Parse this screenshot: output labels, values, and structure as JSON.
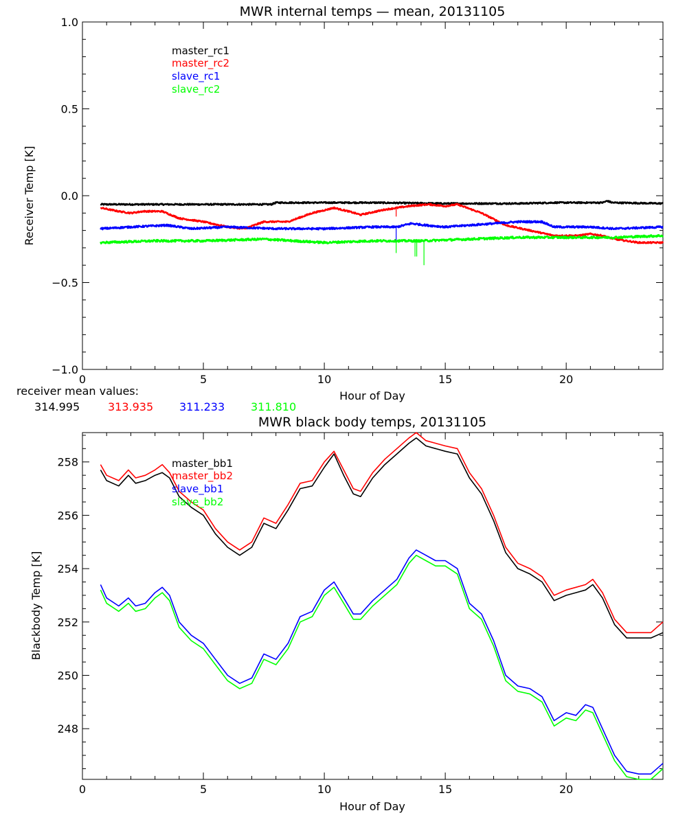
{
  "chart_data": [
    {
      "type": "line",
      "title": "MWR internal temps — mean, 20131105",
      "xlabel": "Hour of Day",
      "ylabel": "Receiver Temp [K]",
      "xlim": [
        0,
        24
      ],
      "ylim": [
        -1.0,
        1.0
      ],
      "xticks": [
        0,
        5,
        10,
        15,
        20
      ],
      "yticks": [
        -1.0,
        -0.5,
        0.0,
        0.5,
        1.0
      ],
      "ytick_labels": [
        "−1.0",
        "−0.5",
        "0.0",
        "0.5",
        "1.0"
      ],
      "legend_position": "top-left",
      "series": [
        {
          "name": "master_rc1",
          "color": "#000000",
          "noise": 0.004,
          "x": [
            0.75,
            3,
            6,
            7.8,
            8,
            12,
            15,
            18,
            19.5,
            21.5,
            21.7,
            21.9,
            24
          ],
          "y": [
            -0.05,
            -0.05,
            -0.05,
            -0.05,
            -0.04,
            -0.04,
            -0.045,
            -0.045,
            -0.04,
            -0.04,
            -0.03,
            -0.04,
            -0.045
          ]
        },
        {
          "name": "master_rc2",
          "color": "#ff0000",
          "noise": 0.004,
          "x": [
            0.75,
            1.5,
            2,
            2.5,
            3.3,
            4,
            5,
            6,
            6.7,
            7.5,
            8.5,
            9.5,
            10.4,
            11,
            11.5,
            12.5,
            13.5,
            14.3,
            15,
            15.5,
            16.5,
            17.5,
            18.5,
            19.5,
            20.5,
            21,
            21.5,
            22,
            23,
            24
          ],
          "y": [
            -0.07,
            -0.09,
            -0.1,
            -0.09,
            -0.09,
            -0.13,
            -0.15,
            -0.18,
            -0.19,
            -0.15,
            -0.15,
            -0.1,
            -0.07,
            -0.09,
            -0.11,
            -0.08,
            -0.06,
            -0.05,
            -0.06,
            -0.05,
            -0.1,
            -0.17,
            -0.2,
            -0.23,
            -0.23,
            -0.22,
            -0.23,
            -0.25,
            -0.27,
            -0.27
          ],
          "spikes": [
            {
              "x": 12.97,
              "to": -0.12
            }
          ]
        },
        {
          "name": "slave_rc1",
          "color": "#0000ff",
          "noise": 0.005,
          "x": [
            0.75,
            2,
            3.5,
            4.5,
            6,
            8,
            10,
            12,
            13,
            13.6,
            14.2,
            15,
            16,
            17,
            18,
            19,
            19.5,
            21,
            22,
            24
          ],
          "y": [
            -0.19,
            -0.18,
            -0.17,
            -0.19,
            -0.18,
            -0.19,
            -0.19,
            -0.18,
            -0.18,
            -0.16,
            -0.17,
            -0.18,
            -0.17,
            -0.16,
            -0.15,
            -0.15,
            -0.18,
            -0.18,
            -0.19,
            -0.18
          ],
          "spikes": [
            {
              "x": 12.97,
              "to": -0.26
            }
          ]
        },
        {
          "name": "slave_rc2",
          "color": "#00ff00",
          "noise": 0.006,
          "x": [
            0.75,
            3,
            5,
            7.5,
            10,
            12,
            14,
            16,
            18,
            20,
            22,
            24
          ],
          "y": [
            -0.27,
            -0.26,
            -0.26,
            -0.25,
            -0.27,
            -0.26,
            -0.26,
            -0.25,
            -0.24,
            -0.24,
            -0.24,
            -0.23
          ],
          "spikes": [
            {
              "x": 12.97,
              "to": -0.33
            },
            {
              "x": 13.75,
              "to": -0.35
            },
            {
              "x": 13.82,
              "to": -0.35
            },
            {
              "x": 14.12,
              "to": -0.4
            }
          ]
        }
      ]
    },
    {
      "type": "line",
      "title": "MWR black body temps, 20131105",
      "xlabel": "Hour of Day",
      "ylabel": "Blackbody Temp [K]",
      "xlim": [
        0,
        24
      ],
      "ylim": [
        246.1,
        259.1
      ],
      "xticks": [
        0,
        5,
        10,
        15,
        20
      ],
      "yticks": [
        248,
        250,
        252,
        254,
        256,
        258
      ],
      "ytick_labels": [
        "248",
        "250",
        "252",
        "254",
        "256",
        "258"
      ],
      "legend_position": "top-left",
      "series": [
        {
          "name": "master_bb1",
          "color": "#000000",
          "x": [
            0.75,
            1.0,
            1.5,
            1.9,
            2.2,
            2.6,
            3.0,
            3.3,
            3.6,
            4.0,
            4.5,
            5.0,
            5.5,
            6.0,
            6.5,
            7.0,
            7.5,
            8.0,
            8.5,
            9.0,
            9.5,
            10.0,
            10.4,
            10.8,
            11.2,
            11.5,
            12.0,
            12.5,
            13.0,
            13.5,
            13.8,
            14.2,
            14.6,
            15.0,
            15.5,
            16.0,
            16.5,
            17.0,
            17.5,
            18.0,
            18.5,
            19.0,
            19.5,
            20.0,
            20.4,
            20.8,
            21.1,
            21.5,
            22.0,
            22.5,
            23.0,
            23.5,
            24.0
          ],
          "y": [
            257.7,
            257.3,
            257.1,
            257.5,
            257.2,
            257.3,
            257.5,
            257.6,
            257.4,
            256.7,
            256.3,
            256.0,
            255.3,
            254.8,
            254.5,
            254.8,
            255.7,
            255.5,
            256.2,
            257.0,
            257.1,
            257.8,
            258.3,
            257.5,
            256.8,
            256.7,
            257.4,
            257.9,
            258.3,
            258.7,
            258.9,
            258.6,
            258.5,
            258.4,
            258.3,
            257.4,
            256.8,
            255.8,
            254.6,
            254.0,
            253.8,
            253.5,
            252.8,
            253.0,
            253.1,
            253.2,
            253.4,
            252.9,
            251.9,
            251.4,
            251.4,
            251.4,
            251.6
          ]
        },
        {
          "name": "master_bb2",
          "color": "#ff0000",
          "x": [
            0.75,
            1.0,
            1.5,
            1.9,
            2.2,
            2.6,
            3.0,
            3.3,
            3.6,
            4.0,
            4.5,
            5.0,
            5.5,
            6.0,
            6.5,
            7.0,
            7.5,
            8.0,
            8.5,
            9.0,
            9.5,
            10.0,
            10.4,
            10.8,
            11.2,
            11.5,
            12.0,
            12.5,
            13.0,
            13.5,
            13.8,
            14.2,
            14.6,
            15.0,
            15.5,
            16.0,
            16.5,
            17.0,
            17.5,
            18.0,
            18.5,
            19.0,
            19.5,
            20.0,
            20.4,
            20.8,
            21.1,
            21.5,
            22.0,
            22.5,
            23.0,
            23.5,
            24.0
          ],
          "y": [
            257.9,
            257.5,
            257.3,
            257.7,
            257.4,
            257.5,
            257.7,
            257.9,
            257.6,
            256.9,
            256.5,
            256.2,
            255.5,
            255.0,
            254.7,
            255.0,
            255.9,
            255.7,
            256.4,
            257.2,
            257.3,
            258.0,
            258.4,
            257.7,
            257.0,
            256.9,
            257.6,
            258.1,
            258.5,
            258.9,
            259.1,
            258.8,
            258.7,
            258.6,
            258.5,
            257.6,
            257.0,
            256.0,
            254.8,
            254.2,
            254.0,
            253.7,
            253.0,
            253.2,
            253.3,
            253.4,
            253.6,
            253.1,
            252.1,
            251.6,
            251.6,
            251.6,
            252.0
          ]
        },
        {
          "name": "slave_bb1",
          "color": "#0000ff",
          "x": [
            0.75,
            1.0,
            1.5,
            1.9,
            2.2,
            2.6,
            3.0,
            3.3,
            3.6,
            4.0,
            4.5,
            5.0,
            5.5,
            6.0,
            6.5,
            7.0,
            7.5,
            8.0,
            8.5,
            9.0,
            9.5,
            10.0,
            10.4,
            10.8,
            11.2,
            11.5,
            12.0,
            12.5,
            13.0,
            13.5,
            13.8,
            14.2,
            14.6,
            15.0,
            15.5,
            16.0,
            16.5,
            17.0,
            17.5,
            18.0,
            18.5,
            19.0,
            19.5,
            20.0,
            20.4,
            20.8,
            21.1,
            21.5,
            22.0,
            22.5,
            23.0,
            23.5,
            24.0
          ],
          "y": [
            253.4,
            252.9,
            252.6,
            252.9,
            252.6,
            252.7,
            253.1,
            253.3,
            253.0,
            252.0,
            251.5,
            251.2,
            250.6,
            250.0,
            249.7,
            249.9,
            250.8,
            250.6,
            251.2,
            252.2,
            252.4,
            253.2,
            253.5,
            252.9,
            252.3,
            252.3,
            252.8,
            253.2,
            253.6,
            254.4,
            254.7,
            254.5,
            254.3,
            254.3,
            254.0,
            252.7,
            252.3,
            251.3,
            250.0,
            249.6,
            249.5,
            249.2,
            248.3,
            248.6,
            248.5,
            248.9,
            248.8,
            248.0,
            247.0,
            246.4,
            246.3,
            246.3,
            246.7
          ]
        },
        {
          "name": "slave_bb2",
          "color": "#00ff00",
          "x": [
            0.75,
            1.0,
            1.5,
            1.9,
            2.2,
            2.6,
            3.0,
            3.3,
            3.6,
            4.0,
            4.5,
            5.0,
            5.5,
            6.0,
            6.5,
            7.0,
            7.5,
            8.0,
            8.5,
            9.0,
            9.5,
            10.0,
            10.4,
            10.8,
            11.2,
            11.5,
            12.0,
            12.5,
            13.0,
            13.5,
            13.8,
            14.2,
            14.6,
            15.0,
            15.5,
            16.0,
            16.5,
            17.0,
            17.5,
            18.0,
            18.5,
            19.0,
            19.5,
            20.0,
            20.4,
            20.8,
            21.1,
            21.5,
            22.0,
            22.5,
            23.0,
            23.5,
            24.0
          ],
          "y": [
            253.2,
            252.7,
            252.4,
            252.7,
            252.4,
            252.5,
            252.9,
            253.1,
            252.8,
            251.8,
            251.3,
            251.0,
            250.4,
            249.8,
            249.5,
            249.7,
            250.6,
            250.4,
            251.0,
            252.0,
            252.2,
            253.0,
            253.3,
            252.7,
            252.1,
            252.1,
            252.6,
            253.0,
            253.4,
            254.2,
            254.5,
            254.3,
            254.1,
            254.1,
            253.8,
            252.5,
            252.1,
            251.1,
            249.8,
            249.4,
            249.3,
            249.0,
            248.1,
            248.4,
            248.3,
            248.7,
            248.6,
            247.8,
            246.8,
            246.2,
            246.1,
            246.1,
            246.5
          ]
        }
      ]
    }
  ],
  "mean_values": {
    "label": "receiver mean values:",
    "values": [
      {
        "text": "314.995",
        "color": "#000000"
      },
      {
        "text": "313.935",
        "color": "#ff0000"
      },
      {
        "text": "311.233",
        "color": "#0000ff"
      },
      {
        "text": "311.810",
        "color": "#00ff00"
      }
    ]
  }
}
